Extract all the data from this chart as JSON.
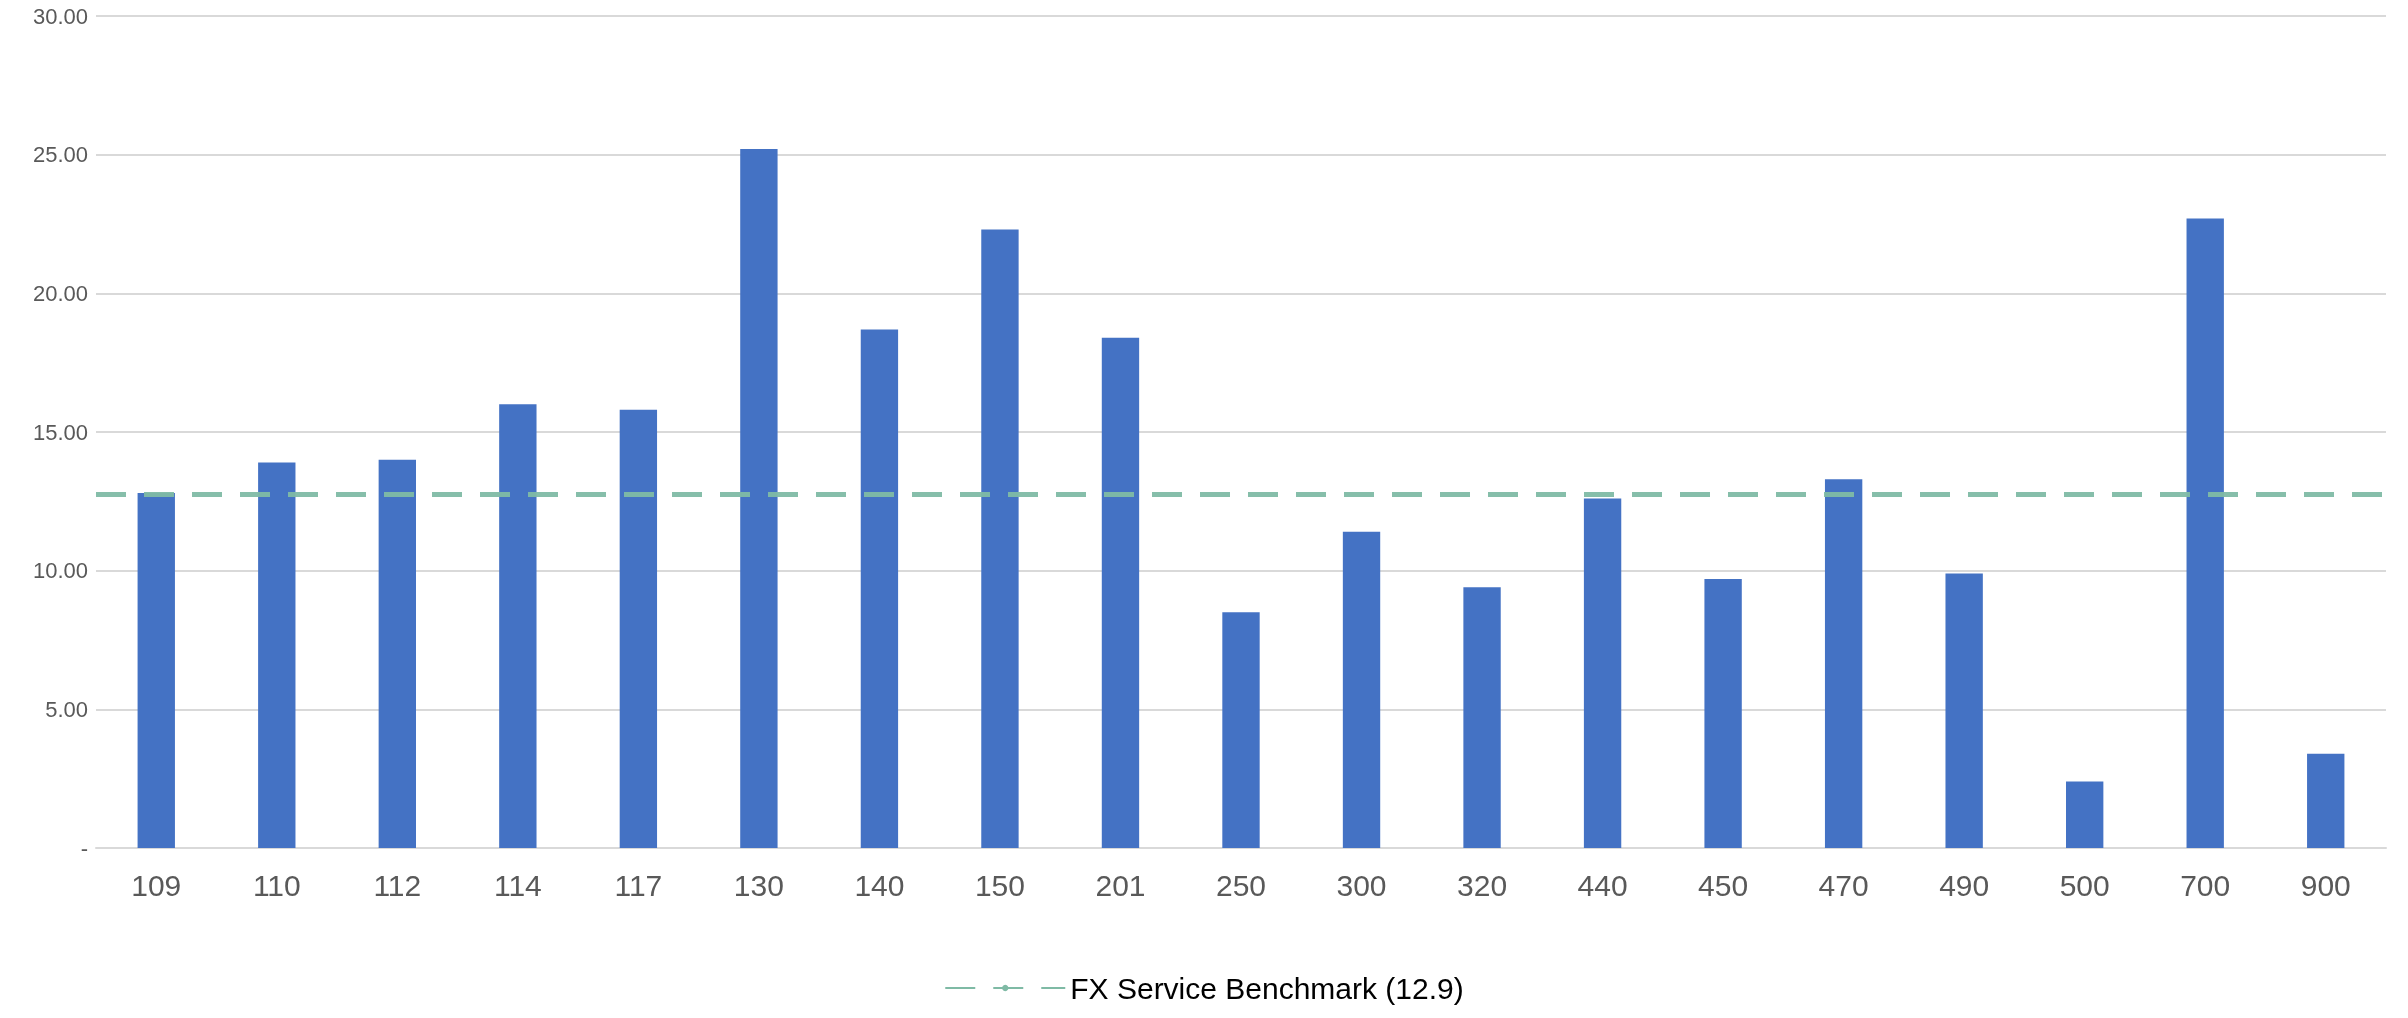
{
  "chart_data": {
    "type": "bar",
    "categories": [
      "109",
      "110",
      "112",
      "114",
      "117",
      "130",
      "140",
      "150",
      "201",
      "250",
      "300",
      "320",
      "440",
      "450",
      "470",
      "490",
      "500",
      "700",
      "900"
    ],
    "values": [
      12.8,
      13.9,
      14.0,
      16.0,
      15.8,
      25.2,
      18.7,
      22.3,
      18.4,
      8.5,
      11.4,
      9.4,
      12.6,
      9.7,
      13.3,
      9.9,
      2.4,
      22.7,
      3.4
    ],
    "color": "#4472c4",
    "ylim": [
      0,
      30
    ],
    "yticks": [
      {
        "value": 0,
        "label": "-"
      },
      {
        "value": 5,
        "label": "5.00"
      },
      {
        "value": 10,
        "label": "10.00"
      },
      {
        "value": 15,
        "label": "15.00"
      },
      {
        "value": 20,
        "label": "20.00"
      },
      {
        "value": 25,
        "label": "25.00"
      },
      {
        "value": 30,
        "label": "30.00"
      }
    ],
    "grid": "y",
    "legend": "bottom",
    "ref_lines": [
      {
        "axis": "y",
        "value": 12.75,
        "label": "FX Service Benchmark (12.9)",
        "color": "#7fbaa5",
        "line_style": "dashed"
      }
    ]
  }
}
